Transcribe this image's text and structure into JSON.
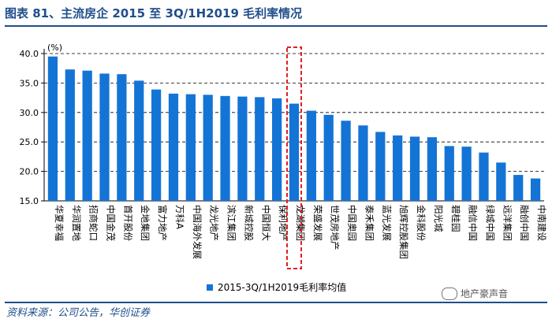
{
  "header": {
    "title": "图表 81、主流房企 2015 至 3Q/1H2019 毛利率情况"
  },
  "footer": {
    "source": "资料来源：公司公告，华创证券"
  },
  "watermark": {
    "text": "地产豪声音",
    "icon": "wechat-icon"
  },
  "highlight": {
    "category": "龙湖集团",
    "color": "#e02020"
  },
  "colors": {
    "bar": "#1474d6",
    "title": "#1f4e8c"
  },
  "chart_data": {
    "type": "bar",
    "title": "",
    "ylabel": "(%)",
    "xlabel": "",
    "ylim": [
      15.0,
      40.0
    ],
    "yticks": [
      "15.0",
      "20.0",
      "25.0",
      "30.0",
      "35.0",
      "40.0"
    ],
    "grid": "dashed-horizontal",
    "legend": "bottom-center",
    "series": [
      {
        "name": "2015-3Q/1H2019毛利率均值",
        "values": [
          39.5,
          37.3,
          37.1,
          36.6,
          36.5,
          35.4,
          33.9,
          33.2,
          33.1,
          33.0,
          32.8,
          32.7,
          32.6,
          32.4,
          31.5,
          30.3,
          29.6,
          28.6,
          27.8,
          26.7,
          26.1,
          25.9,
          25.8,
          24.3,
          24.2,
          23.2,
          21.5,
          19.4,
          18.8
        ]
      }
    ],
    "categories": [
      "华夏幸福",
      "华润置地",
      "招商蛇口",
      "中国金茂",
      "首开股份",
      "金地集团",
      "富力地产",
      "万科A",
      "中国海外发展",
      "龙光地产",
      "滨江集团",
      "新城控股",
      "中国恒大",
      "保利地产",
      "龙湖集团",
      "荣盛发展",
      "世茂房地产",
      "中国奥园",
      "泰禾集团",
      "蓝光发展",
      "旭辉控股集团",
      "金科股份",
      "阳光城",
      "碧桂园",
      "融信中国",
      "绿城中国",
      "远洋集团",
      "融创中国",
      "中南建设"
    ]
  }
}
